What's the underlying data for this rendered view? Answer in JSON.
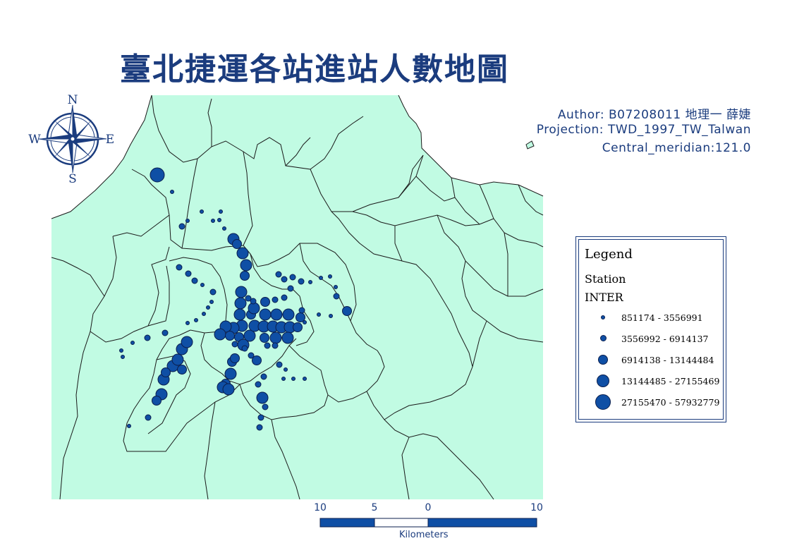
{
  "title": "臺北捷運各站進站人數地圖",
  "meta": {
    "author": "Author: B07208011 地理一 薛婕",
    "projection": "Projection: TWD_1997_TW_Talwan",
    "central_meridian": "Central_meridian:121.0"
  },
  "compass": {
    "n": "N",
    "s": "S",
    "e": "E",
    "w": "W"
  },
  "legend": {
    "title": "Legend",
    "layer": "Station",
    "field": "INTER",
    "classes": [
      {
        "label": "851174 - 3556991"
      },
      {
        "label": "3556992 - 6914137"
      },
      {
        "label": "6914138 - 13144484"
      },
      {
        "label": "13144485 - 27155469"
      },
      {
        "label": "27155470 - 57932779"
      }
    ]
  },
  "scale_bar": {
    "labels": [
      "10",
      "5",
      "0",
      "10"
    ],
    "unit": "Kilometers"
  },
  "colors": {
    "land": "#c1fbe3",
    "station_fill": "#0f4fa5",
    "station_stroke": "#0b1f4e",
    "boundary": "#1a1a1a",
    "text": "#1b3c7e"
  }
}
